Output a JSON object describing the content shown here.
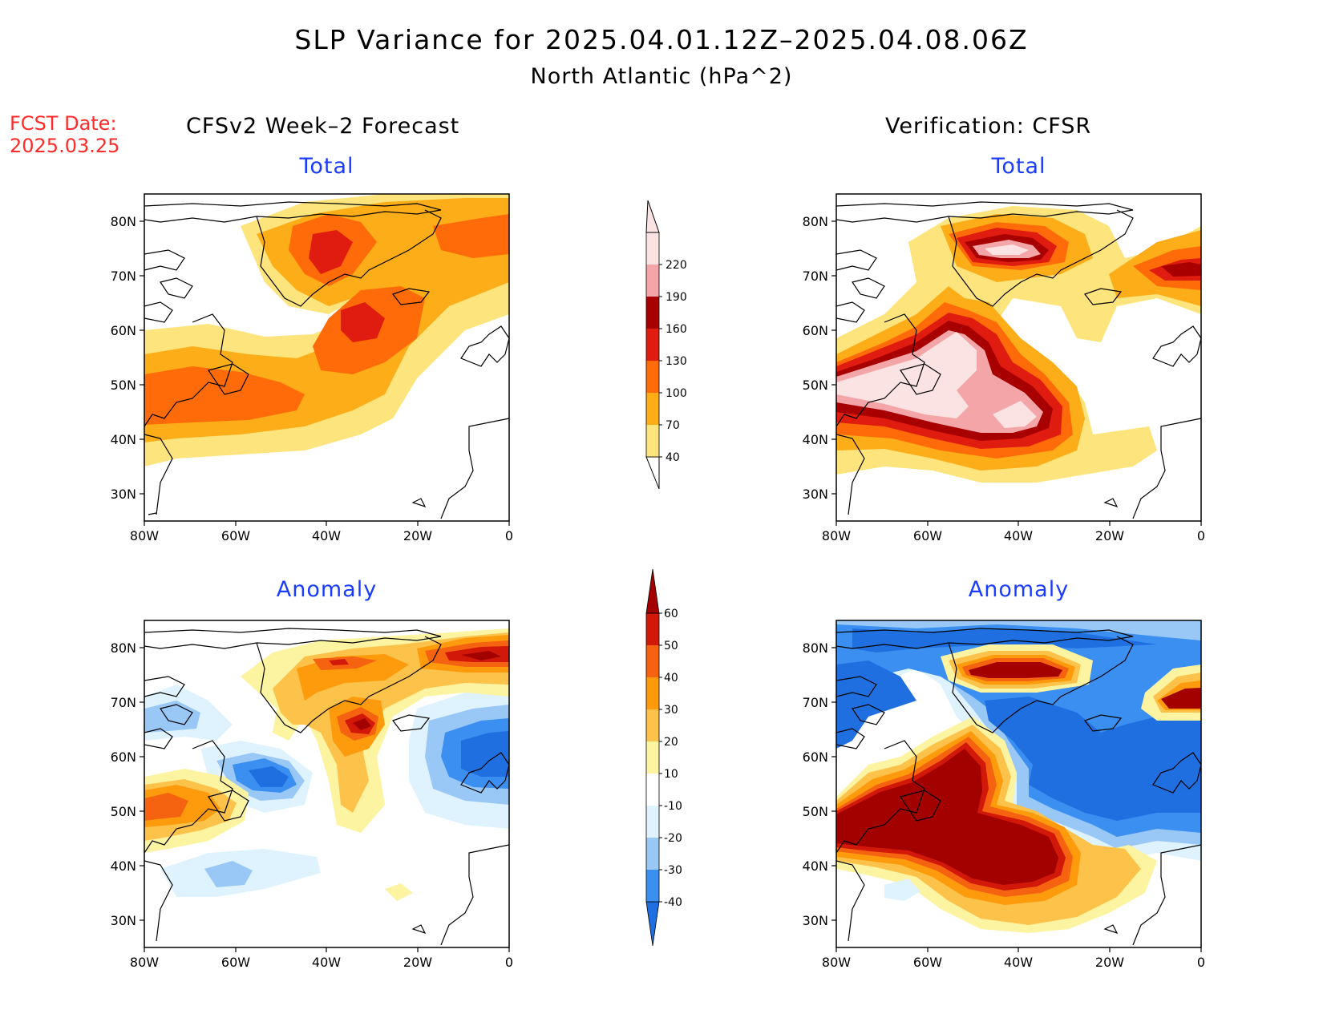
{
  "header": {
    "title": "SLP Variance for 2025.04.01.12Z–2025.04.08.06Z",
    "subtitle": "North Atlantic (hPa^2)"
  },
  "fcst": {
    "line1": "FCST Date:",
    "line2": "2025.03.25"
  },
  "columns": {
    "left": "CFSv2 Week–2 Forecast",
    "right": "Verification: CFSR"
  },
  "panels": {
    "top_left": "Total",
    "top_right": "Total",
    "bottom_left": "Anomaly",
    "bottom_right": "Anomaly"
  },
  "axes": {
    "lat_labels": [
      "80N",
      "70N",
      "60N",
      "50N",
      "40N",
      "30N"
    ],
    "lon_labels": [
      "80W",
      "60W",
      "40W",
      "20W",
      "0"
    ]
  },
  "colorbar_total": {
    "levels": [
      "40",
      "70",
      "100",
      "130",
      "160",
      "190",
      "220"
    ],
    "colors": [
      "#fde47c",
      "#fdad18",
      "#ff6b08",
      "#e01b0f",
      "#a80000",
      "#f3a5a7",
      "#fbe3e3"
    ]
  },
  "colorbar_anomaly": {
    "levels": [
      "-40",
      "-30",
      "-20",
      "-10",
      "10",
      "20",
      "30",
      "40",
      "50",
      "60"
    ],
    "colors": [
      "#1f6fe0",
      "#3b8ff0",
      "#99c8f6",
      "#dff3ff",
      "#ffffff",
      "#fdf4a2",
      "#fdc24a",
      "#fd9b0c",
      "#f56210",
      "#d21808",
      "#a30000"
    ]
  },
  "colors": {
    "c40": "#fde47c",
    "c70": "#fdad18",
    "c100": "#ff6b08",
    "c130": "#e01b0f",
    "c160": "#a80000",
    "c190": "#f3a5a7",
    "c220": "#fbe3e3",
    "blue_dark": "#1f6fe0",
    "blue_mid": "#3b8ff0",
    "blue_light": "#99c8f6",
    "blue_pale": "#dff3ff",
    "yellow_pale": "#fdf4a2",
    "gold": "#fdc24a",
    "orange": "#fd9b0c",
    "orange_red": "#f56210",
    "red": "#d21808",
    "dark_red": "#a30000"
  }
}
